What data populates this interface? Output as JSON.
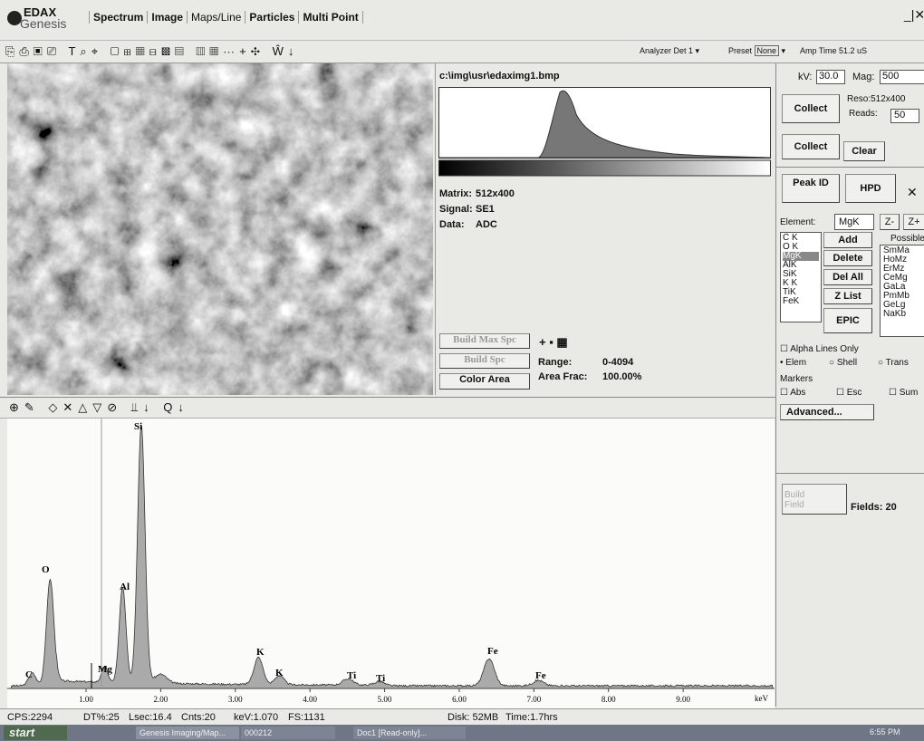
{
  "app": {
    "logo_top": "EDAX",
    "logo_bottom": "Genesis",
    "tabs": [
      "Spectrum",
      "Image",
      "Maps/Line",
      "Particles",
      "Multi Point"
    ]
  },
  "toolbar": {
    "analyzer_label": "Analyzer",
    "analyzer": "Det 1",
    "preset_label": "Preset",
    "preset": "None",
    "amp_time_label": "Amp Time",
    "amp_time": "51.2 uS"
  },
  "image_panel": {
    "file": "c:\\img\\usr\\edaximg1.bmp",
    "matrix_label": "Matrix:",
    "matrix": "512x400",
    "signal_label": "Signal:",
    "signal": "SE1",
    "data_label": "Data:",
    "data": "ADC",
    "buttons": [
      "Build Max Spc",
      "Build Spc",
      "Color Area"
    ],
    "range_label": "Range:",
    "range": "0-4094",
    "area_frac_label": "Area Frac:",
    "area_frac": "100.00%"
  },
  "control_panel": {
    "kv_label": "kV:",
    "kv": "30.0",
    "mag_label": "Mag:",
    "mag": "500",
    "collect": "Collect",
    "reso": "Reso:512x400",
    "reads_label": "Reads:",
    "reads": "50",
    "collect2": "Collect",
    "clear": "Clear",
    "peak_id": "Peak ID",
    "hpd": "HPD",
    "element_label": "Element:",
    "element": "MgK",
    "z_minus": "Z-",
    "z_plus": "Z+",
    "elements": [
      "C K",
      "O K",
      "MgK",
      "AlK",
      "SiK",
      "K K",
      "TiK",
      "FeK"
    ],
    "element_buttons": [
      "Add",
      "Delete",
      "Del All",
      "Z List",
      "EPIC"
    ],
    "possible_label": "Possible",
    "possible": [
      "SmMa",
      "HoMz",
      "ErMz",
      "CeMg",
      "GaLa",
      "PmMb",
      "GeLg",
      "NaKb"
    ],
    "alpha_lines": "Alpha Lines Only",
    "line_modes": [
      "Elem",
      "Shell",
      "Trans"
    ],
    "markers_label": "Markers",
    "markers": [
      "Abs",
      "Esc",
      "Sum"
    ],
    "advanced": "Advanced...",
    "build_field": "Build Field",
    "fields": "Fields: 20"
  },
  "spectrum": {
    "xlim": [
      0,
      10.2
    ],
    "xticks": [
      {
        "value": 1,
        "label": "1.00"
      },
      {
        "value": 2,
        "label": "2.00"
      },
      {
        "value": 3,
        "label": "3.00"
      },
      {
        "value": 4,
        "label": "4.00"
      },
      {
        "value": 5,
        "label": "5.00"
      },
      {
        "value": 6,
        "label": "6.00"
      },
      {
        "value": 7,
        "label": "7.00"
      },
      {
        "value": 8,
        "label": "8.00"
      },
      {
        "value": 9,
        "label": "9.00"
      }
    ],
    "x_unit": "keV",
    "peak_labels": [
      "C",
      "O",
      "Mg",
      "Al",
      "Si",
      "K",
      "K",
      "Ti",
      "Ti",
      "Fe",
      "Fe"
    ]
  },
  "status_bar": {
    "cps": "CPS:2294",
    "dt": "DT%:25",
    "lsec": "Lsec:16.4",
    "cnts": "Cnts:20",
    "kev": "keV:1.070",
    "fs": "FS:1131",
    "disk": "Disk: 52MB",
    "time": "Time:1.7hrs"
  },
  "taskbar": {
    "start": "start",
    "items": [
      "Genesis Imaging/Map...",
      "000212",
      "Doc1 [Read-only]..."
    ],
    "clock": "6:55 PM"
  }
}
